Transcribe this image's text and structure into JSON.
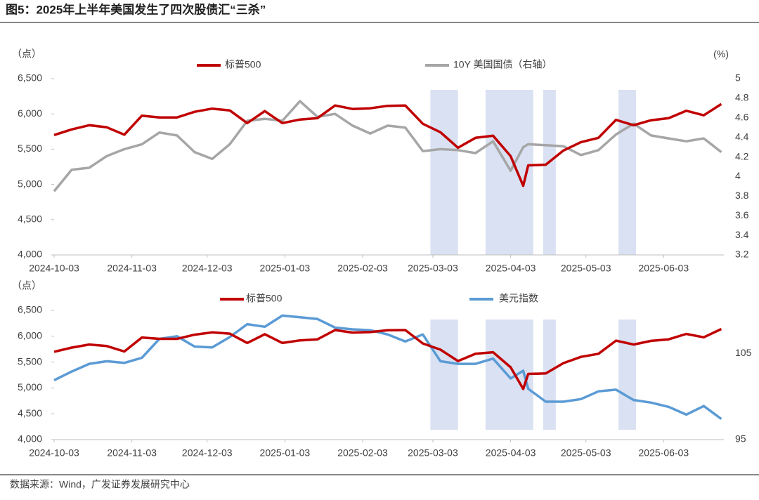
{
  "title": "图5：2025年上半年美国发生了四次股债汇“三杀”",
  "source": "数据来源：Wind，广发证券发展研究中心",
  "chart_data": [
    {
      "type": "line",
      "y_label": "（点）",
      "y2_label": "(%)",
      "x": [
        "2024-10-03",
        "2024-10-10",
        "2024-10-17",
        "2024-10-24",
        "2024-10-31",
        "2024-11-07",
        "2024-11-14",
        "2024-11-21",
        "2024-11-28",
        "2024-12-05",
        "2024-12-12",
        "2024-12-19",
        "2024-12-26",
        "2025-01-02",
        "2025-01-09",
        "2025-01-16",
        "2025-01-23",
        "2025-01-30",
        "2025-02-06",
        "2025-02-13",
        "2025-02-20",
        "2025-02-27",
        "2025-03-06",
        "2025-03-13",
        "2025-03-20",
        "2025-03-27",
        "2025-04-03",
        "2025-04-08",
        "2025-04-10",
        "2025-04-17",
        "2025-04-24",
        "2025-05-01",
        "2025-05-08",
        "2025-05-15",
        "2025-05-22",
        "2025-05-29",
        "2025-06-05",
        "2025-06-12",
        "2025-06-19",
        "2025-06-26"
      ],
      "series": [
        {
          "name": "标普500",
          "color": "#c00000",
          "axis": "y",
          "values": [
            5700,
            5780,
            5840,
            5810,
            5705,
            5975,
            5950,
            5950,
            6030,
            6075,
            6050,
            5870,
            6040,
            5870,
            5920,
            5940,
            6120,
            6070,
            6080,
            6115,
            6120,
            5860,
            5740,
            5520,
            5660,
            5690,
            5400,
            4980,
            5270,
            5280,
            5480,
            5600,
            5660,
            5915,
            5840,
            5910,
            5940,
            6045,
            5980,
            6140
          ]
        },
        {
          "name": "10Y 美国国债（右轴）",
          "color": "#a6a6a6",
          "axis": "y2",
          "values": [
            3.85,
            4.07,
            4.09,
            4.21,
            4.28,
            4.33,
            4.45,
            4.42,
            4.25,
            4.18,
            4.33,
            4.57,
            4.59,
            4.57,
            4.77,
            4.61,
            4.64,
            4.52,
            4.44,
            4.52,
            4.5,
            4.26,
            4.28,
            4.27,
            4.24,
            4.36,
            4.06,
            4.3,
            4.33,
            4.32,
            4.31,
            4.22,
            4.27,
            4.43,
            4.54,
            4.42,
            4.39,
            4.36,
            4.39,
            4.25
          ]
        }
      ],
      "xlim": [
        "2024-10-03",
        "2025-06-27"
      ],
      "xticks": [
        "2024-10-03",
        "2024-11-03",
        "2024-12-03",
        "2025-01-03",
        "2025-02-03",
        "2025-03-03",
        "2025-04-03",
        "2025-05-03",
        "2025-06-03"
      ],
      "ylim": [
        4000,
        6500
      ],
      "yticks": [
        {
          "value": 4000,
          "label": "4,000"
        },
        {
          "value": 4500,
          "label": "4,500"
        },
        {
          "value": 5000,
          "label": "5,000"
        },
        {
          "value": 5500,
          "label": "5,500"
        },
        {
          "value": 6000,
          "label": "6,000"
        },
        {
          "value": 6500,
          "label": "6,500"
        }
      ],
      "y2lim": [
        3.2,
        5
      ],
      "y2ticks": [
        3.2,
        3.4,
        3.6,
        3.8,
        4,
        4.2,
        4.4,
        4.6,
        4.8,
        5
      ],
      "shaded_periods": [
        [
          "2025-03-02",
          "2025-03-13"
        ],
        [
          "2025-03-24",
          "2025-04-12"
        ],
        [
          "2025-04-16",
          "2025-04-21"
        ],
        [
          "2025-05-16",
          "2025-05-23"
        ]
      ],
      "shade_color": "#d9e1f2"
    },
    {
      "type": "line",
      "y_label": "（点）",
      "x": [
        "2024-10-03",
        "2024-10-10",
        "2024-10-17",
        "2024-10-24",
        "2024-10-31",
        "2024-11-07",
        "2024-11-14",
        "2024-11-21",
        "2024-11-28",
        "2024-12-05",
        "2024-12-12",
        "2024-12-19",
        "2024-12-26",
        "2025-01-02",
        "2025-01-09",
        "2025-01-16",
        "2025-01-23",
        "2025-01-30",
        "2025-02-06",
        "2025-02-13",
        "2025-02-20",
        "2025-02-27",
        "2025-03-06",
        "2025-03-13",
        "2025-03-20",
        "2025-03-27",
        "2025-04-03",
        "2025-04-08",
        "2025-04-10",
        "2025-04-17",
        "2025-04-24",
        "2025-05-01",
        "2025-05-08",
        "2025-05-15",
        "2025-05-22",
        "2025-05-29",
        "2025-06-05",
        "2025-06-12",
        "2025-06-19",
        "2025-06-26"
      ],
      "series": [
        {
          "name": "标普500",
          "color": "#c00000",
          "axis": "y",
          "values": [
            5700,
            5780,
            5840,
            5810,
            5705,
            5975,
            5950,
            5950,
            6030,
            6075,
            6050,
            5870,
            6040,
            5870,
            5920,
            5940,
            6120,
            6070,
            6080,
            6115,
            6120,
            5860,
            5740,
            5520,
            5660,
            5690,
            5400,
            4980,
            5270,
            5280,
            5480,
            5600,
            5660,
            5915,
            5840,
            5910,
            5940,
            6045,
            5980,
            6140
          ]
        },
        {
          "name": "美元指数",
          "color": "#5b9bd5",
          "axis": "y2",
          "values": [
            101.9,
            102.9,
            103.8,
            104.1,
            103.9,
            104.5,
            106.7,
            107,
            105.8,
            105.7,
            106.9,
            108.4,
            108.1,
            109.4,
            109.2,
            109,
            108,
            107.8,
            107.7,
            107.2,
            106.4,
            107.2,
            104.1,
            103.8,
            103.8,
            104.4,
            102.1,
            103,
            100.9,
            99.4,
            99.4,
            99.7,
            100.6,
            100.8,
            99.6,
            99.3,
            98.8,
            97.9,
            98.9,
            97.4
          ]
        }
      ],
      "xlim": [
        "2024-10-03",
        "2025-06-27"
      ],
      "xticks": [
        "2024-10-03",
        "2024-11-03",
        "2024-12-03",
        "2025-01-03",
        "2025-02-03",
        "2025-03-03",
        "2025-04-03",
        "2025-05-03",
        "2025-06-03"
      ],
      "ylim": [
        4000,
        6500
      ],
      "yticks": [
        {
          "value": 4000,
          "label": "4,000"
        },
        {
          "value": 4500,
          "label": "4,500"
        },
        {
          "value": 5000,
          "label": "5,000"
        },
        {
          "value": 5500,
          "label": "5,500"
        },
        {
          "value": 6000,
          "label": "6,000"
        },
        {
          "value": 6500,
          "label": "6,500"
        }
      ],
      "y2lim": [
        95,
        110
      ],
      "y2ticks": [
        95,
        105
      ],
      "shaded_periods": [
        [
          "2025-03-02",
          "2025-03-13"
        ],
        [
          "2025-03-24",
          "2025-04-12"
        ],
        [
          "2025-04-16",
          "2025-04-21"
        ],
        [
          "2025-05-16",
          "2025-05-23"
        ]
      ],
      "shade_color": "#d9e1f2"
    }
  ]
}
